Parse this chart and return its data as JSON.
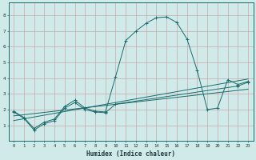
{
  "xlabel": "Humidex (Indice chaleur)",
  "xlim": [
    -0.5,
    23.5
  ],
  "ylim": [
    0,
    8.8
  ],
  "xticks": [
    0,
    1,
    2,
    3,
    4,
    5,
    6,
    7,
    8,
    9,
    10,
    11,
    12,
    13,
    14,
    15,
    16,
    17,
    18,
    19,
    20,
    21,
    22,
    23
  ],
  "yticks": [
    1,
    2,
    3,
    4,
    5,
    6,
    7,
    8
  ],
  "bg_color": "#d0eaea",
  "line_color": "#1a6b6b",
  "grid_color": "#b8d8d8",
  "line1_x": [
    0,
    1,
    2,
    3,
    4,
    5,
    6,
    7,
    8,
    9,
    10,
    11,
    12,
    13,
    14,
    15,
    16,
    17,
    18,
    19,
    20,
    21,
    22,
    23
  ],
  "line1_y": [
    1.9,
    1.5,
    0.8,
    1.2,
    1.4,
    2.2,
    2.6,
    2.1,
    1.9,
    1.85,
    4.1,
    6.4,
    7.0,
    7.5,
    7.85,
    7.9,
    7.55,
    6.5,
    4.5,
    2.0,
    2.1,
    3.9,
    3.6,
    3.8
  ],
  "line2_x": [
    0,
    1,
    2,
    3,
    4,
    5,
    6,
    7,
    8,
    9,
    10,
    22,
    23
  ],
  "line2_y": [
    1.85,
    1.45,
    0.7,
    1.1,
    1.3,
    2.1,
    2.45,
    2.0,
    1.85,
    1.8,
    2.35,
    3.5,
    3.75
  ],
  "line3_x": [
    0,
    23
  ],
  "line3_y": [
    1.6,
    3.3
  ],
  "line4_x": [
    0,
    23
  ],
  "line4_y": [
    1.3,
    3.95
  ]
}
